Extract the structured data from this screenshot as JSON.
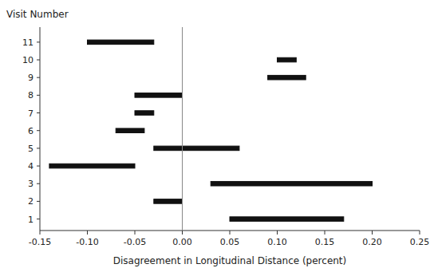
{
  "chart_data": {
    "type": "range_bar",
    "orientation": "horizontal",
    "x_label": "Disagreement in Longitudinal Distance (percent)",
    "y_label": "Visit Number",
    "y": [
      1,
      2,
      3,
      4,
      5,
      6,
      7,
      8,
      9,
      10,
      11
    ],
    "starts": [
      0.05,
      -0.03,
      0.03,
      -0.14,
      -0.03,
      -0.07,
      -0.05,
      -0.05,
      0.09,
      0.1,
      -0.1
    ],
    "ends": [
      0.17,
      0.0,
      0.2,
      -0.05,
      0.06,
      -0.04,
      -0.03,
      0.0,
      0.13,
      0.12,
      -0.03
    ],
    "color": "#111111",
    "reference_line": {
      "x": 0.0,
      "color": "#888888"
    },
    "xlim": [
      -0.15,
      0.25
    ],
    "xticks": [
      -0.15,
      {
        "value": -0.1,
        "label": "-0.10"
      },
      -0.05,
      {
        "value": 0.0,
        "label": "0.00"
      },
      0.05,
      {
        "value": 0.1,
        "label": "0.10"
      },
      0.15,
      {
        "value": 0.2,
        "label": "0.20"
      },
      0.25
    ],
    "ylim": [
      0.35,
      11.85
    ],
    "yticks": [
      1,
      2,
      3,
      4,
      5,
      6,
      7,
      8,
      9,
      10,
      11
    ],
    "grid": false
  }
}
